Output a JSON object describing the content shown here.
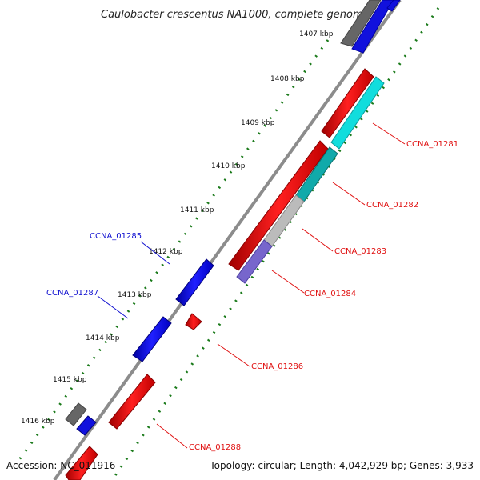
{
  "title": "Caulobacter crescentus NA1000, complete genome",
  "accession": "Accession: NC_011916",
  "summary": "Topology: circular; Length: 4,042,929 bp; Genes: 3,933",
  "ruler_labels": [
    "1407 kbp",
    "1408 kbp",
    "1409 kbp",
    "1410 kbp",
    "1411 kbp",
    "1412 kbp",
    "1413 kbp",
    "1414 kbp",
    "1415 kbp",
    "1416 kbp"
  ],
  "gene_labels": {
    "reverse": [
      "CCNA_01281",
      "CCNA_01282",
      "CCNA_01283",
      "CCNA_01284",
      "CCNA_01286",
      "CCNA_01288"
    ],
    "forward": [
      "CCNA_01285",
      "CCNA_01287"
    ]
  },
  "colors": {
    "reverse_gene": "#ee1111",
    "forward_gene": "#1111dd",
    "other_gene": "#666666",
    "cyan_gene": "#11dddd",
    "teal_gene": "#11aaaa",
    "gray_gene": "#bbbbbb",
    "purple_gene": "#7766cc",
    "tick": "#1a7a1a",
    "backbone": "#8c8c8c"
  }
}
